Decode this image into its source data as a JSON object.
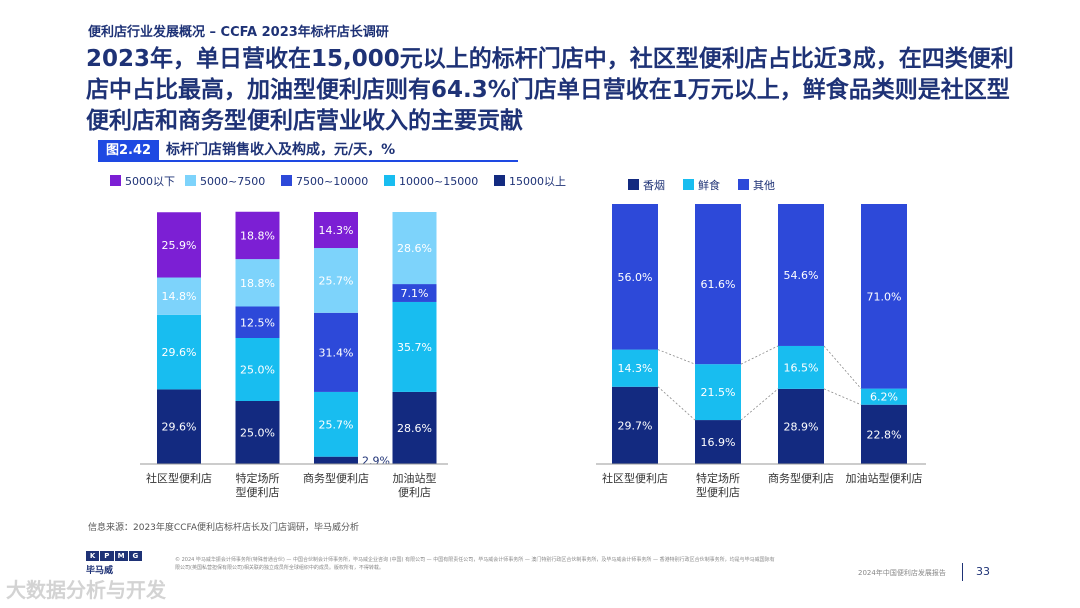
{
  "header": {
    "subtitle": "便利店行业发展概况 – CCFA 2023年标杆店长调研",
    "headline": "2023年，单日营收在15,000元以上的标杆门店中，社区型便利店占比近3成，在四类便利店中占比最高，加油型便利店则有64.3%门店单日营收在1万元以上，鲜食品类则是社区型便利店和商务型便利店营业收入的主要贡献"
  },
  "figure": {
    "badge": "图2.42",
    "title": "标杆门店销售收入及构成，元/天，%"
  },
  "colors": {
    "purple": "#7c1fd4",
    "light_blue": "#7dd3fb",
    "royal_blue": "#2d49d9",
    "cyan": "#18bdf0",
    "navy": "#132a80"
  },
  "chart_data": [
    {
      "type": "bar",
      "stacked": true,
      "categories": [
        "社区型便利店",
        "特定场所\n型便利店",
        "商务型便利店",
        "加油站型\n便利店"
      ],
      "series": [
        {
          "name": "15000以上",
          "color": "#132a80",
          "values": [
            29.6,
            25.0,
            2.9,
            28.6
          ]
        },
        {
          "name": "10000~15000",
          "color": "#18bdf0",
          "values": [
            29.6,
            25.0,
            25.7,
            35.7
          ]
        },
        {
          "name": "7500~10000",
          "color": "#2d49d9",
          "values": [
            0,
            12.5,
            31.4,
            7.1
          ]
        },
        {
          "name": "5000~7500",
          "color": "#7dd3fb",
          "values": [
            14.8,
            18.8,
            25.7,
            28.6
          ]
        },
        {
          "name": "5000以下",
          "color": "#7c1fd4",
          "values": [
            25.9,
            18.8,
            14.3,
            0
          ]
        }
      ],
      "legend_order": [
        "5000以下",
        "5000~7500",
        "7500~10000",
        "10000~15000",
        "15000以上"
      ],
      "ylim": [
        0,
        100
      ],
      "value_labels": [
        "29.6%",
        "29.6%",
        "14.8%",
        "25.9%",
        "25.0%",
        "25.0%",
        "12.5%",
        "18.8%",
        "18.8%",
        "2.9%",
        "25.7%",
        "31.4%",
        "25.7%",
        "14.3%",
        "28.6%",
        "35.7%",
        "7.1%",
        "28.6%"
      ]
    },
    {
      "type": "bar",
      "stacked": true,
      "categories": [
        "社区型便利店",
        "特定场所\n型便利店",
        "商务型便利店",
        "加油站型便利店"
      ],
      "series": [
        {
          "name": "香烟",
          "color": "#132a80",
          "values": [
            29.7,
            16.9,
            28.9,
            22.8
          ]
        },
        {
          "name": "鲜食",
          "color": "#18bdf0",
          "values": [
            14.3,
            21.5,
            16.5,
            6.2
          ]
        },
        {
          "name": "其他",
          "color": "#2d49d9",
          "values": [
            56.0,
            61.6,
            54.6,
            71.0
          ]
        }
      ],
      "legend_order": [
        "香烟",
        "鲜食",
        "其他"
      ],
      "ylim": [
        0,
        100
      ],
      "value_labels": [
        "29.7%",
        "14.3%",
        "56.0%",
        "16.9%",
        "21.5%",
        "61.6%",
        "28.9%",
        "16.5%",
        "54.6%",
        "22.8%",
        "6.2%",
        "71.0%"
      ]
    }
  ],
  "footer": {
    "source": "信息来源：2023年度CCFA便利店标杆店长及门店调研，毕马威分析",
    "legal": "© 2024 毕马威华振会计师事务所(特殊普通合伙) — 中国合伙制会计师事务所，毕马威企业咨询 (中国) 有限公司 — 中国有限责任公司，毕马威会计师事务所 — 澳门特别行政区合伙制事务所，及毕马威会计师事务所 — 香港特别行政区合伙制事务所，均是与毕马威国际有限公司(英国私营担保有限公司)相关联的独立成员所全球组织中的成员。版权所有，不得转载。",
    "logo_text": "KPMG",
    "logo_cn": "毕马威",
    "report_name": "2024年中国便利店发展报告",
    "page_number": "33",
    "watermark": "大数据分析与开发"
  }
}
